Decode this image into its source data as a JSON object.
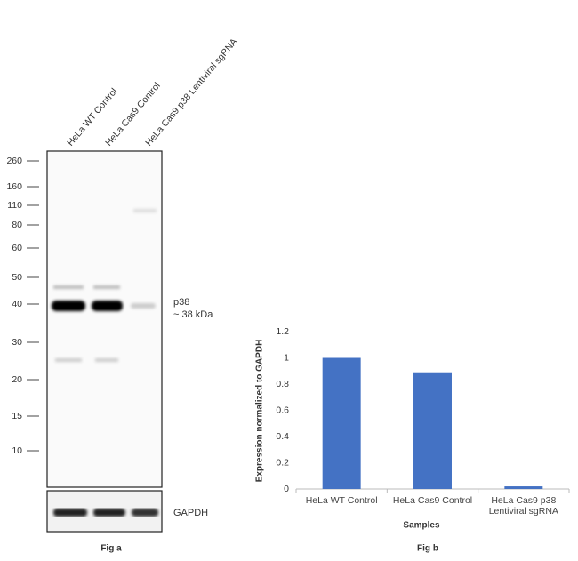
{
  "blot": {
    "lanes": [
      "HeLa WT Control",
      "HeLa Cas9 Control",
      "HeLa Cas9 p38 Lentiviral sgRNA"
    ],
    "markers": [
      260,
      160,
      110,
      80,
      60,
      50,
      40,
      30,
      20,
      15,
      10
    ],
    "band_label": "p38",
    "band_size": "~ 38 kDa",
    "loading_control": "GAPDH",
    "caption": "Fig a"
  },
  "chart_data": {
    "type": "bar",
    "caption": "Fig b",
    "categories": [
      "HeLa WT Control",
      "HeLa Cas9 Control",
      "HeLa Cas9 p38 Lentiviral sgRNA"
    ],
    "values": [
      1,
      0.89,
      0.02
    ],
    "color": "#4472c4",
    "xlabel": "Samples",
    "ylabel": "Expression normalized to GAPDH",
    "ylim": [
      0,
      1.2
    ],
    "yticks": [
      0,
      0.2,
      0.4,
      0.6,
      0.8,
      1,
      1.2
    ],
    "grid": false
  }
}
